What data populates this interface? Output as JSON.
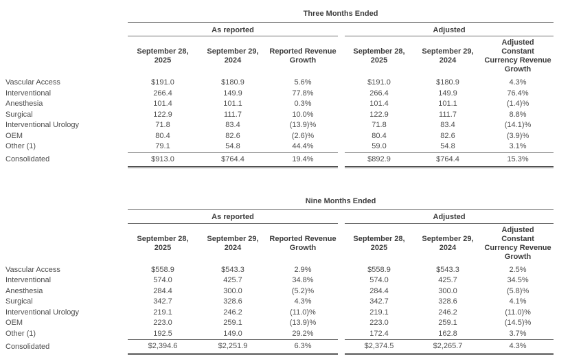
{
  "theme": {
    "background": "#ffffff",
    "body_text_color": "#4c4c4c",
    "heading_text_color": "#3d3d3d",
    "rule_color": "#6e6e6e",
    "total_double_rule_color": "#4d4d4d"
  },
  "tables": [
    {
      "period_title": "Three Months Ended",
      "groups": [
        "As reported",
        "Adjusted"
      ],
      "columns": [
        "September 28,\n2025",
        "September 29,\n2024",
        "Reported Revenue\nGrowth",
        "September 28,\n2025",
        "September 29,\n2024",
        "Adjusted\nConstant\nCurrency Revenue\nGrowth"
      ],
      "rows": [
        {
          "label": "Vascular Access",
          "values": [
            "$191.0",
            "$180.9",
            "5.6%",
            "$191.0",
            "$180.9",
            "4.3%"
          ]
        },
        {
          "label": "Interventional",
          "values": [
            "266.4",
            "149.9",
            "77.8%",
            "266.4",
            "149.9",
            "76.4%"
          ]
        },
        {
          "label": "Anesthesia",
          "values": [
            "101.4",
            "101.1",
            "0.3%",
            "101.4",
            "101.1",
            "(1.4)%"
          ]
        },
        {
          "label": "Surgical",
          "values": [
            "122.9",
            "111.7",
            "10.0%",
            "122.9",
            "111.7",
            "8.8%"
          ]
        },
        {
          "label": "Interventional Urology",
          "values": [
            "71.8",
            "83.4",
            "(13.9)%",
            "71.8",
            "83.4",
            "(14.1)%"
          ]
        },
        {
          "label": "OEM",
          "values": [
            "80.4",
            "82.6",
            "(2.6)%",
            "80.4",
            "82.6",
            "(3.9)%"
          ]
        },
        {
          "label": "Other (1)",
          "values": [
            "79.1",
            "54.8",
            "44.4%",
            "59.0",
            "54.8",
            "3.1%"
          ]
        }
      ],
      "total": {
        "label": "Consolidated",
        "values": [
          "$913.0",
          "$764.4",
          "19.4%",
          "$892.9",
          "$764.4",
          "15.3%"
        ]
      }
    },
    {
      "period_title": "Nine Months Ended",
      "groups": [
        "As reported",
        "Adjusted"
      ],
      "columns": [
        "September 28,\n2025",
        "September 29,\n2024",
        "Reported Revenue\nGrowth",
        "September 28,\n2025",
        "September 29,\n2024",
        "Adjusted\nConstant\nCurrency Revenue\nGrowth"
      ],
      "rows": [
        {
          "label": "Vascular Access",
          "values": [
            "$558.9",
            "$543.3",
            "2.9%",
            "$558.9",
            "$543.3",
            "2.5%"
          ]
        },
        {
          "label": "Interventional",
          "values": [
            "574.0",
            "425.7",
            "34.8%",
            "574.0",
            "425.7",
            "34.5%"
          ]
        },
        {
          "label": "Anesthesia",
          "values": [
            "284.4",
            "300.0",
            "(5.2)%",
            "284.4",
            "300.0",
            "(5.8)%"
          ]
        },
        {
          "label": "Surgical",
          "values": [
            "342.7",
            "328.6",
            "4.3%",
            "342.7",
            "328.6",
            "4.1%"
          ]
        },
        {
          "label": "Interventional Urology",
          "values": [
            "219.1",
            "246.2",
            "(11.0)%",
            "219.1",
            "246.2",
            "(11.0)%"
          ]
        },
        {
          "label": "OEM",
          "values": [
            "223.0",
            "259.1",
            "(13.9)%",
            "223.0",
            "259.1",
            "(14.5)%"
          ]
        },
        {
          "label": "Other (1)",
          "values": [
            "192.5",
            "149.0",
            "29.2%",
            "172.4",
            "162.8",
            "3.7%"
          ]
        }
      ],
      "total": {
        "label": "Consolidated",
        "values": [
          "$2,394.6",
          "$2,251.9",
          "6.3%",
          "$2,374.5",
          "$2,265.7",
          "4.3%"
        ]
      }
    }
  ]
}
